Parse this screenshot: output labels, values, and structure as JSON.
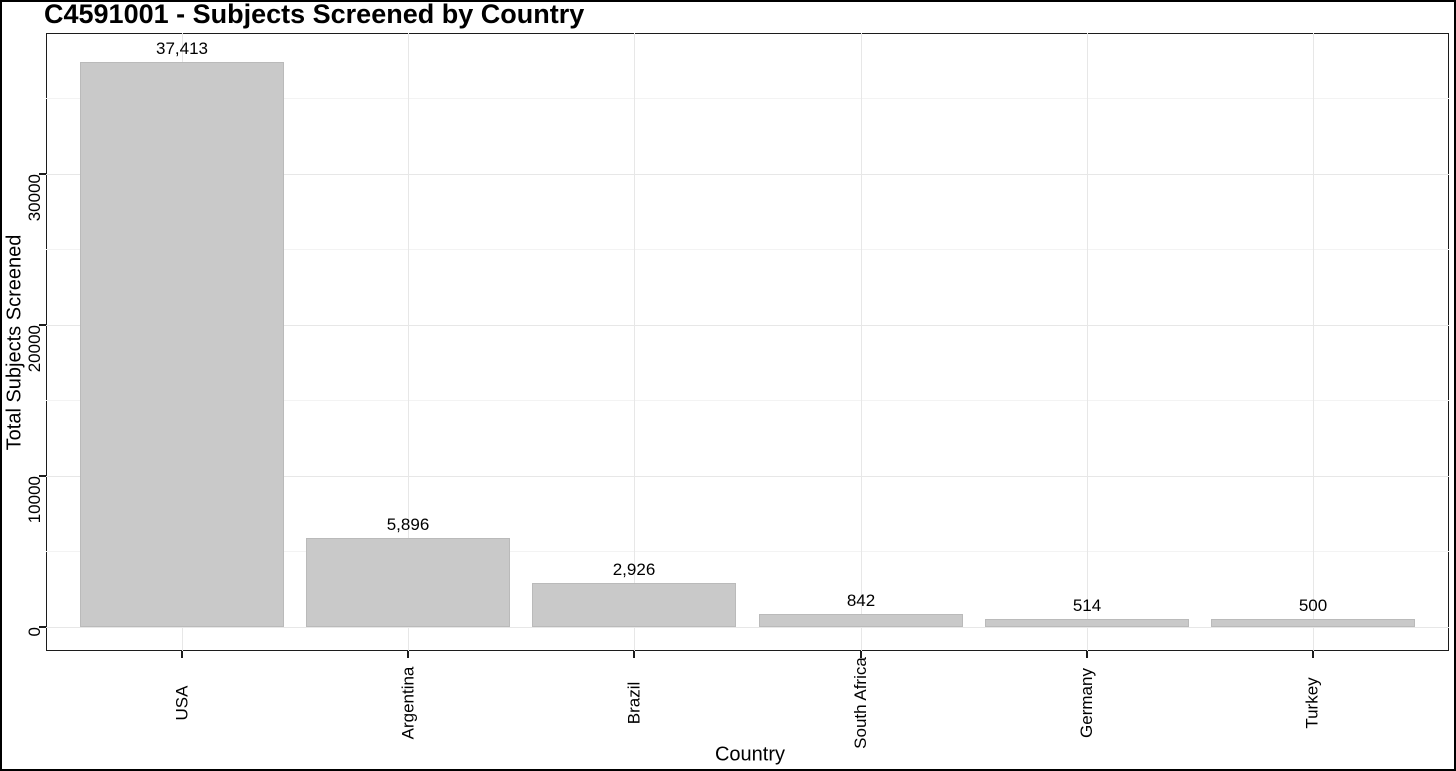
{
  "title": "C4591001 - Subjects Screened by Country",
  "colors": {
    "bar_fill": "#c9c9c9",
    "bar_border": "#bababa",
    "grid_major": "#e7e7e7",
    "grid_minor": "#f3f3f3",
    "panel_border": "#1c1c1c",
    "text": "#000000",
    "background": "#ffffff"
  },
  "chart_data": {
    "type": "bar",
    "title": "C4591001 - Subjects Screened by Country",
    "xlabel": "Country",
    "ylabel": "Total Subjects Screened",
    "categories": [
      "USA",
      "Argentina",
      "Brazil",
      "South Africa",
      "Germany",
      "Turkey"
    ],
    "values": [
      37413,
      5896,
      2926,
      842,
      514,
      500
    ],
    "value_labels": [
      "37,413",
      "5,896",
      "2,926",
      "842",
      "514",
      "500"
    ],
    "yticks": {
      "values": [
        0,
        10000,
        20000,
        30000
      ],
      "labels": [
        "0",
        "10000",
        "20000",
        "30000"
      ]
    },
    "yminor_values": [
      5000,
      15000,
      25000,
      35000
    ],
    "ylim": [
      0,
      39330
    ],
    "grid": "on",
    "legend": "none",
    "bar_orientation": "vertical",
    "x_tick_label_rotation_deg": 90,
    "y_tick_label_rotation_deg": 90
  }
}
